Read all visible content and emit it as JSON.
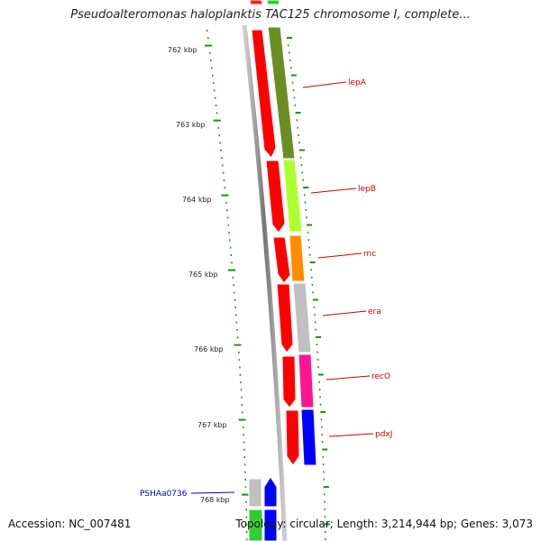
{
  "title": "Pseudoalteromonas haloplanktis TAC125 chromosome I, complete...",
  "accession": "Accession: NC_007481",
  "topology": "Topology: circular; Length: 3,214,944 bp; Genes: 3,073",
  "colors": {
    "forward_strand": "#ff0000",
    "backbone": "#888888",
    "tick": "#228b22",
    "label_red": "#cc0000",
    "label_blue": "#0000cc"
  },
  "scale_labels": [
    "762 kbp",
    "763 kbp",
    "764 kbp",
    "765 kbp",
    "766 kbp",
    "767 kbp",
    "768 kbp"
  ],
  "genes": [
    {
      "name": "lepA",
      "color": "#6b8e23",
      "label_color": "#cc0000"
    },
    {
      "name": "lepB",
      "color": "#adff2f",
      "label_color": "#cc0000"
    },
    {
      "name": "rnc",
      "color": "#ff8c00",
      "label_color": "#cc0000"
    },
    {
      "name": "era",
      "color": "#c0c0c0",
      "label_color": "#cc0000"
    },
    {
      "name": "recO",
      "color": "#ff1493",
      "label_color": "#cc0000"
    },
    {
      "name": "pdxJ",
      "color": "#0000ff",
      "label_color": "#cc0000"
    },
    {
      "name": "PSHAa0736",
      "color": "#c0c0c0",
      "label_color": "#0000cc"
    }
  ]
}
